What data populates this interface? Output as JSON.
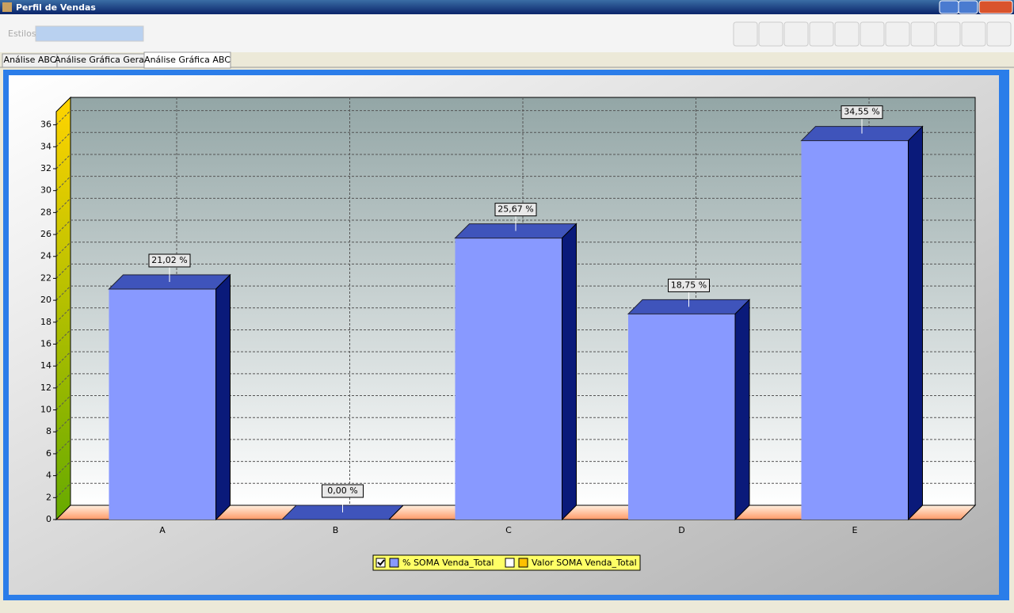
{
  "window": {
    "title": "Perfil de Vendas"
  },
  "toolbar": {
    "styles_label": "Estilos:"
  },
  "tabs": [
    "Análise ABC",
    "Análise Gráfica Geral",
    "Análise Gráfica ABC"
  ],
  "chart_data": {
    "type": "bar3d",
    "categories": [
      "A",
      "B",
      "C",
      "D",
      "E"
    ],
    "series": [
      {
        "name": "% SOMA Venda_Total",
        "color": "#8899ff",
        "checked": true,
        "values": [
          21.02,
          0,
          25.67,
          18.75,
          34.55
        ],
        "value_labels": [
          "21,02 %",
          "0,00 %",
          "25,67 %",
          "18,75 %",
          "34,55 %"
        ]
      },
      {
        "name": "Valor SOMA Venda_Total",
        "color": "#ffc000",
        "checked": false
      }
    ],
    "ylim": [
      0,
      37.2
    ],
    "yticks": [
      0,
      2,
      4,
      6,
      8,
      10,
      12,
      14,
      16,
      18,
      20,
      22,
      24,
      26,
      28,
      30,
      32,
      34,
      36
    ],
    "grid": true
  }
}
